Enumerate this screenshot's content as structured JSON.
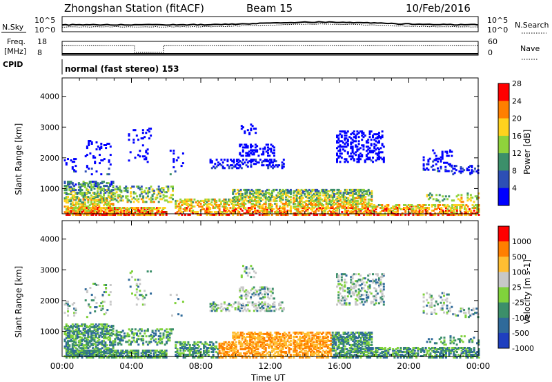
{
  "header": {
    "station": "Zhongshan Station (fitACF)",
    "beam": "Beam 15",
    "date": "10/Feb/2016"
  },
  "status_panel": {
    "nsky_label": "N.Sky",
    "nsky_ticks": [
      "10^5",
      "10^0"
    ],
    "nsearch_label": "N.Search",
    "nsearch_ticks": [
      "10^5",
      "10^0"
    ],
    "freq_label_line1": "Freq.",
    "freq_label_line2": "[MHz]",
    "freq_ticks": [
      "18",
      "8"
    ],
    "nave_label": "Nave",
    "nave_ticks": [
      "60",
      "0"
    ],
    "cpid_label": "CPID",
    "cpid_text": "normal (fast stereo) 153"
  },
  "chart_data": [
    {
      "type": "heatmap",
      "name": "power",
      "xlabel": "",
      "ylabel": "Slant Range [km]",
      "x_ticks": [
        "00:00",
        "04:00",
        "08:00",
        "12:00",
        "16:00",
        "20:00",
        "00:00"
      ],
      "y_ticks": [
        "1000",
        "2000",
        "3000",
        "4000"
      ],
      "xlim_hours": [
        0,
        24
      ],
      "ylim_km": [
        180,
        4600
      ],
      "colorbar_label": "Power [dB]",
      "colorbar_ticks": [
        "4",
        "8",
        "12",
        "16",
        "20",
        "24",
        "28"
      ],
      "colorbar_colors": [
        "#0000ff",
        "#2d4fb5",
        "#3c8f6a",
        "#8fd23c",
        "#ffd21e",
        "#ff7f00",
        "#ff0000"
      ],
      "grid": false
    },
    {
      "type": "heatmap",
      "name": "velocity",
      "xlabel": "Time UT",
      "ylabel": "Slant Range [km]",
      "x_ticks": [
        "00:00",
        "04:00",
        "08:00",
        "12:00",
        "16:00",
        "20:00",
        "00:00"
      ],
      "y_ticks": [
        "1000",
        "2000",
        "3000",
        "4000"
      ],
      "xlim_hours": [
        0,
        24
      ],
      "ylim_km": [
        180,
        4600
      ],
      "colorbar_label": "Velocity [m s-1]",
      "colorbar_ticks": [
        "1000",
        "500",
        "100",
        "25",
        "-25",
        "-100",
        "-500",
        "-1000"
      ],
      "colorbar_colors": [
        "#1f3fbf",
        "#2f6a9a",
        "#3c8f6a",
        "#80d23c",
        "#c8c8c8",
        "#ffbe32",
        "#ff7f00",
        "#ff0000"
      ],
      "grid": false
    }
  ]
}
